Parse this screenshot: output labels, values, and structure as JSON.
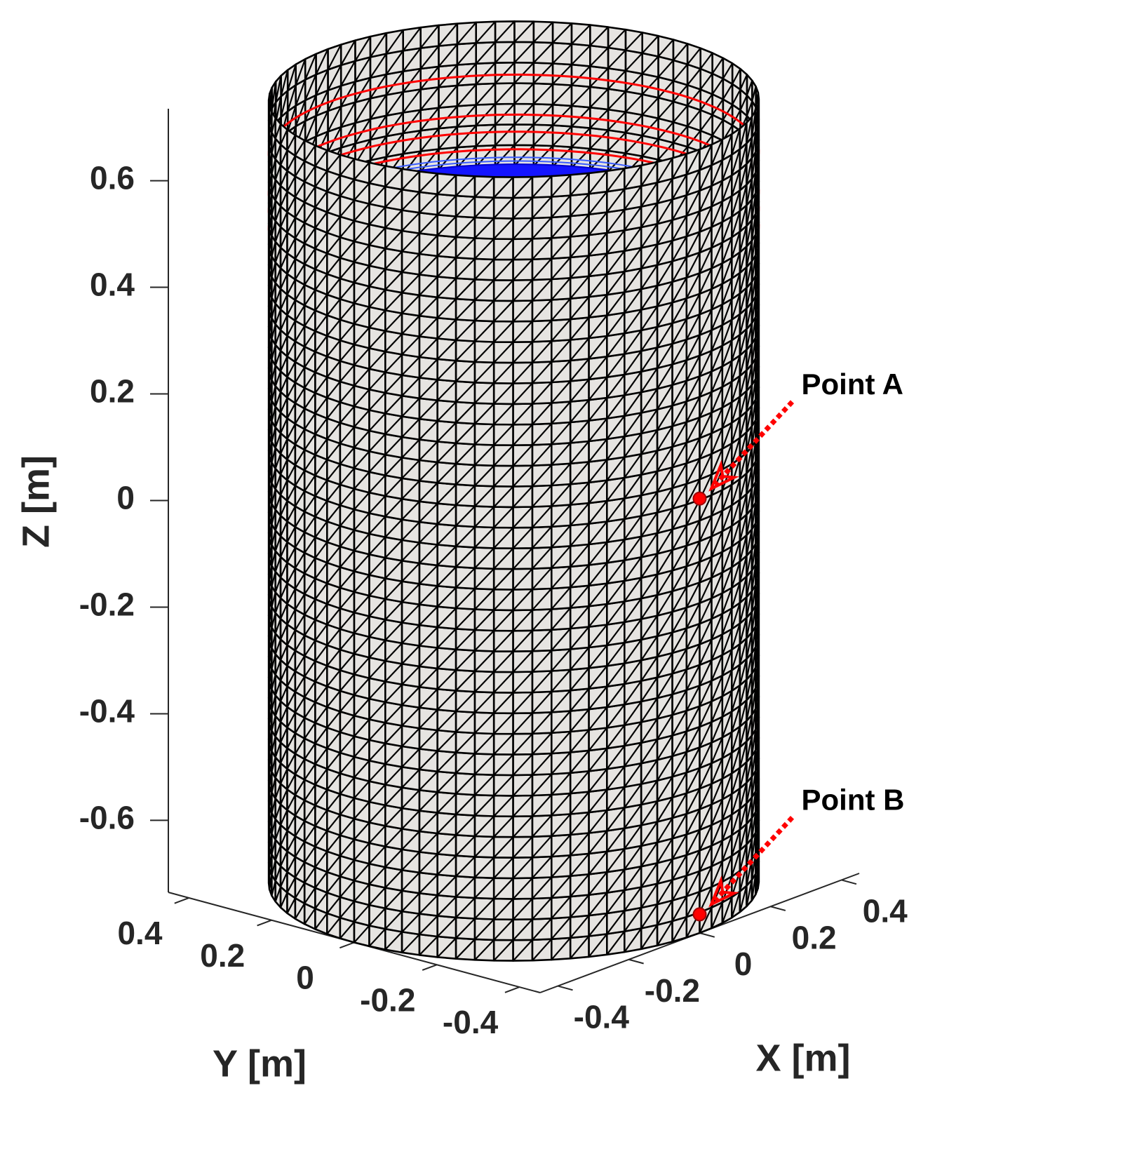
{
  "chart_data": {
    "type": "surface3d",
    "xlabel": "X [m]",
    "ylabel": "Y [m]",
    "zlabel": "Z [m]",
    "xlim": [
      -0.45,
      0.45
    ],
    "ylim": [
      -0.45,
      0.45
    ],
    "zlim": [
      -0.735,
      0.735
    ],
    "xticks": [
      -0.4,
      -0.2,
      0,
      0.2,
      0.4
    ],
    "yticks": [
      -0.4,
      -0.2,
      0,
      0.2,
      0.4
    ],
    "zticks": [
      -0.6,
      -0.4,
      -0.2,
      0,
      0.2,
      0.4,
      0.6
    ],
    "points": [
      {
        "label": "Point A",
        "x": 0,
        "y": -0.45,
        "z": 0.08,
        "color": "#ff0000"
      },
      {
        "label": "Point B",
        "x": 0,
        "y": -0.45,
        "z": -0.7,
        "color": "#ff0000"
      }
    ]
  }
}
